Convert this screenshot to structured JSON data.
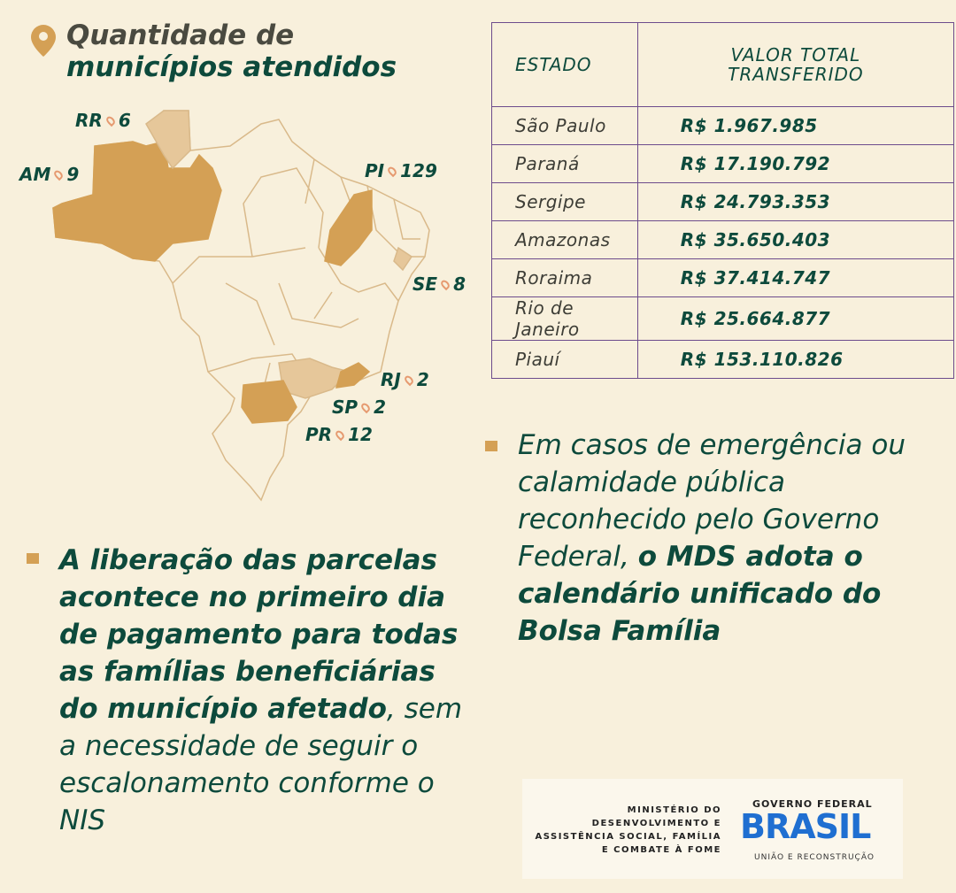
{
  "header": {
    "title_line1": "Quantidade de",
    "title_line2": "municípios atendidos"
  },
  "map_labels": [
    {
      "state": "RR",
      "count": 6
    },
    {
      "state": "AM",
      "count": 9
    },
    {
      "state": "PI",
      "count": 129
    },
    {
      "state": "SE",
      "count": 8
    },
    {
      "state": "RJ",
      "count": 2
    },
    {
      "state": "SP",
      "count": 2
    },
    {
      "state": "PR",
      "count": 12
    }
  ],
  "table": {
    "headers": [
      "ESTADO",
      "VALOR TOTAL TRANSFERIDO"
    ],
    "rows": [
      [
        "São Paulo",
        "R$ 1.967.985"
      ],
      [
        "Paraná",
        "R$ 17.190.792"
      ],
      [
        "Sergipe",
        "R$ 24.793.353"
      ],
      [
        "Amazonas",
        "R$ 35.650.403"
      ],
      [
        "Roraima",
        "R$ 37.414.747"
      ],
      [
        "Rio de Janeiro",
        "R$ 25.664.877"
      ],
      [
        "Piauí",
        "R$ 153.110.826"
      ]
    ]
  },
  "note_left": [
    {
      "text": "A liberação das parcelas acontece no primeiro dia de pagamento para todas as famílias beneficiárias do município afetado",
      "bold": true
    },
    {
      "text": ", sem a necessidade de seguir o escalonamento conforme o NIS",
      "bold": false
    }
  ],
  "note_right": [
    {
      "text": "Em casos de emergência ou calamidade pública reconhecido pelo Governo Federal, ",
      "bold": false
    },
    {
      "text": "o MDS adota o calendário unificado do Bolsa Família",
      "bold": true
    }
  ],
  "footer": {
    "ministry": "MINISTÉRIO DO DESENVOLVIMENTO E ASSISTÊNCIA SOCIAL, FAMÍLIA E COMBATE À FOME",
    "gov": "GOVERNO FEDERAL",
    "brand": "BRASIL",
    "motto": "UNIÃO E RECONSTRUÇÃO"
  }
}
